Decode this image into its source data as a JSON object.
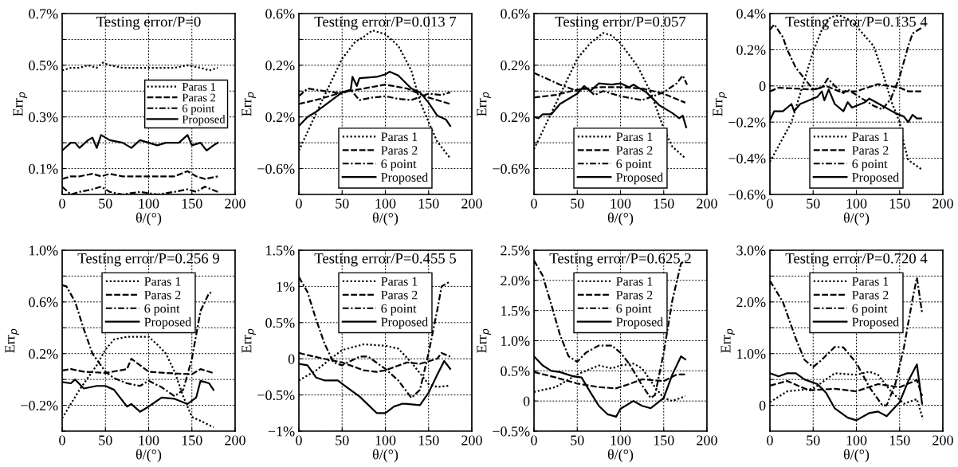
{
  "chart_data": [
    {
      "type": "line",
      "title": "Testing error/P=0",
      "xlabel": "θ/(°)",
      "ylabel": "Err$_{p}$",
      "grid": true,
      "legend": "right",
      "xlim": [
        0,
        200
      ],
      "xticks": [
        0,
        50,
        100,
        150,
        200
      ],
      "ylim": [
        0,
        0.7
      ],
      "yticks": [
        {
          "value": 0,
          "label": null
        },
        {
          "value": 0.1,
          "label": "0.1%"
        },
        {
          "value": 0.2,
          "label": null
        },
        {
          "value": 0.3,
          "label": "0.3%"
        },
        {
          "value": 0.4,
          "label": null
        },
        {
          "value": 0.5,
          "label": "0.5%"
        },
        {
          "value": 0.6,
          "label": null
        },
        {
          "value": 0.7,
          "label": "0.7%"
        }
      ],
      "series": [
        {
          "name": "Paras 1",
          "color": "#000000",
          "line_style": "dotted",
          "x": [
            0,
            10,
            20,
            30,
            40,
            47,
            55,
            70,
            90,
            110,
            130,
            145,
            160,
            170,
            180
          ],
          "values": [
            0.48,
            0.49,
            0.49,
            0.5,
            0.49,
            0.51,
            0.5,
            0.49,
            0.49,
            0.49,
            0.49,
            0.5,
            0.49,
            0.48,
            0.49
          ]
        },
        {
          "name": "Paras 2",
          "color": "#000000",
          "line_style": "dashed",
          "x": [
            0,
            10,
            20,
            35,
            45,
            55,
            70,
            90,
            110,
            130,
            145,
            155,
            165,
            180
          ],
          "values": [
            0.06,
            0.07,
            0.07,
            0.08,
            0.07,
            0.08,
            0.07,
            0.07,
            0.07,
            0.07,
            0.09,
            0.07,
            0.06,
            0.07
          ]
        },
        {
          "name": "6 point",
          "color": "#000000",
          "line_style": "dashdot",
          "x": [
            0,
            10,
            20,
            35,
            45,
            55,
            70,
            90,
            110,
            130,
            145,
            155,
            165,
            180
          ],
          "values": [
            0.03,
            0.0,
            0.01,
            0.02,
            0.03,
            0.01,
            0.0,
            0.01,
            0.0,
            0.01,
            0.02,
            0.01,
            0.03,
            0.01
          ]
        },
        {
          "name": "Proposed",
          "color": "#000000",
          "line_style": "solid",
          "x": [
            0,
            10,
            15,
            20,
            30,
            35,
            40,
            45,
            55,
            70,
            80,
            90,
            100,
            110,
            120,
            135,
            145,
            150,
            160,
            167,
            175,
            180
          ],
          "values": [
            0.17,
            0.2,
            0.2,
            0.18,
            0.21,
            0.22,
            0.18,
            0.23,
            0.21,
            0.2,
            0.18,
            0.21,
            0.2,
            0.19,
            0.2,
            0.2,
            0.23,
            0.19,
            0.2,
            0.17,
            0.19,
            0.2
          ]
        }
      ]
    },
    {
      "type": "line",
      "title": "Testing error/P=0.013 7",
      "xlabel": "θ/(°)",
      "ylabel": "Err$_{p}$",
      "grid": true,
      "legend": "bottom",
      "xlim": [
        0,
        200
      ],
      "xticks": [
        0,
        50,
        100,
        150,
        200
      ],
      "ylim": [
        -0.8,
        0.6
      ],
      "yticks": [
        {
          "value": -0.8,
          "label": null
        },
        {
          "value": -0.6,
          "label": "−0.6%"
        },
        {
          "value": -0.4,
          "label": null
        },
        {
          "value": -0.2,
          "label": "0.2%"
        },
        {
          "value": 0,
          "label": null
        },
        {
          "value": 0.2,
          "label": "0.2%"
        },
        {
          "value": 0.4,
          "label": null
        },
        {
          "value": 0.6,
          "label": "0.6%"
        }
      ],
      "series": [
        {
          "name": "Paras 1",
          "color": "#000000",
          "line_style": "dotted",
          "x": [
            0,
            25,
            50,
            65,
            75,
            85,
            100,
            115,
            130,
            140,
            150,
            160,
            175
          ],
          "values": [
            -0.46,
            -0.1,
            0.25,
            0.38,
            0.42,
            0.47,
            0.44,
            0.35,
            0.16,
            -0.08,
            -0.24,
            -0.39,
            -0.52
          ]
        },
        {
          "name": "Paras 2",
          "color": "#000000",
          "line_style": "dashed",
          "x": [
            0,
            25,
            50,
            75,
            100,
            125,
            150,
            175
          ],
          "values": [
            -0.1,
            -0.06,
            -0.01,
            0.02,
            0.05,
            0.02,
            -0.05,
            -0.1
          ]
        },
        {
          "name": "6 point",
          "color": "#000000",
          "line_style": "dashdot",
          "x": [
            0,
            10,
            30,
            50,
            60,
            70,
            85,
            100,
            115,
            130,
            150,
            165,
            175
          ],
          "values": [
            -0.04,
            0.02,
            0.0,
            -0.02,
            0.01,
            -0.07,
            -0.05,
            -0.04,
            -0.06,
            -0.07,
            -0.02,
            -0.03,
            -0.01
          ]
        },
        {
          "name": "Proposed",
          "color": "#000000",
          "line_style": "solid",
          "x": [
            0,
            10,
            20,
            30,
            50,
            60,
            62,
            67,
            70,
            90,
            100,
            105,
            115,
            130,
            140,
            150,
            160,
            170,
            175
          ],
          "values": [
            -0.27,
            -0.2,
            -0.16,
            -0.11,
            -0.01,
            0.01,
            0.11,
            0.04,
            0.1,
            0.11,
            0.13,
            0.15,
            0.12,
            0.02,
            -0.01,
            -0.09,
            -0.19,
            -0.22,
            -0.27
          ]
        }
      ]
    },
    {
      "type": "line",
      "title": "Testing error/P=0.057",
      "xlabel": "θ/(°)",
      "ylabel": "Err$_{p}$",
      "grid": true,
      "legend": "bottom",
      "xlim": [
        0,
        200
      ],
      "xticks": [
        0,
        50,
        100,
        150,
        200
      ],
      "ylim": [
        -0.8,
        0.6
      ],
      "yticks": [
        {
          "value": -0.8,
          "label": null
        },
        {
          "value": -0.6,
          "label": "−0.6%"
        },
        {
          "value": -0.4,
          "label": null
        },
        {
          "value": -0.2,
          "label": "0.2%"
        },
        {
          "value": 0,
          "label": null
        },
        {
          "value": 0.2,
          "label": "0.2%"
        },
        {
          "value": 0.4,
          "label": null
        },
        {
          "value": 0.6,
          "label": "0.6%"
        }
      ],
      "series": [
        {
          "name": "Paras 1",
          "color": "#000000",
          "line_style": "dotted",
          "x": [
            0,
            25,
            50,
            65,
            80,
            90,
            100,
            120,
            135,
            150,
            160,
            175
          ],
          "values": [
            -0.45,
            -0.1,
            0.25,
            0.37,
            0.45,
            0.43,
            0.37,
            0.19,
            -0.01,
            -0.29,
            -0.43,
            -0.52
          ]
        },
        {
          "name": "Paras 2",
          "color": "#000000",
          "line_style": "dashed",
          "x": [
            0,
            25,
            50,
            75,
            100,
            125,
            150,
            175
          ],
          "values": [
            -0.05,
            -0.03,
            0.01,
            0.03,
            0.03,
            0.02,
            -0.02,
            -0.09
          ]
        },
        {
          "name": "6 point",
          "color": "#000000",
          "line_style": "dashdot",
          "x": [
            0,
            10,
            30,
            50,
            60,
            70,
            80,
            100,
            125,
            150,
            165,
            172,
            177
          ],
          "values": [
            0.14,
            0.11,
            0.05,
            0.0,
            0.03,
            -0.03,
            0.0,
            -0.04,
            -0.07,
            -0.01,
            0.06,
            0.12,
            0.05
          ]
        },
        {
          "name": "Proposed",
          "color": "#000000",
          "line_style": "solid",
          "x": [
            0,
            5,
            10,
            20,
            30,
            50,
            58,
            65,
            75,
            90,
            100,
            110,
            115,
            130,
            145,
            160,
            168,
            172,
            176
          ],
          "values": [
            -0.2,
            -0.21,
            -0.18,
            -0.18,
            -0.1,
            -0.02,
            0.04,
            0.0,
            0.06,
            0.05,
            0.06,
            0.03,
            0.05,
            -0.01,
            -0.11,
            -0.17,
            -0.21,
            -0.19,
            -0.28
          ]
        }
      ]
    },
    {
      "type": "line",
      "title": "Testing error/P=0.135 4",
      "xlabel": "θ/(°)",
      "ylabel": "Err$_{p}$",
      "grid": true,
      "legend": "bottom",
      "xlim": [
        0,
        200
      ],
      "xticks": [
        0,
        50,
        100,
        150,
        200
      ],
      "ylim": [
        -0.6,
        0.4
      ],
      "yticks": [
        {
          "value": -0.6,
          "label": "−0.6%"
        },
        {
          "value": -0.4,
          "label": "−0.4%"
        },
        {
          "value": -0.2,
          "label": "−0.2%"
        },
        {
          "value": 0,
          "label": "0"
        },
        {
          "value": 0.2,
          "label": "0.2%"
        },
        {
          "value": 0.4,
          "label": "0.4%"
        }
      ],
      "series": [
        {
          "name": "Paras 1",
          "color": "#000000",
          "line_style": "dotted",
          "x": [
            0,
            25,
            50,
            60,
            70,
            80,
            90,
            100,
            120,
            130,
            140,
            150,
            155,
            160,
            175
          ],
          "values": [
            -0.42,
            -0.2,
            0.19,
            0.31,
            0.38,
            0.39,
            0.37,
            0.33,
            0.22,
            0.08,
            -0.08,
            -0.2,
            -0.32,
            -0.41,
            -0.46
          ]
        },
        {
          "name": "Paras 2",
          "color": "#000000",
          "line_style": "dashed",
          "x": [
            0,
            10,
            50,
            65,
            80,
            100,
            125,
            150,
            160,
            175
          ],
          "values": [
            -0.03,
            -0.01,
            -0.02,
            0.0,
            -0.03,
            -0.03,
            0.01,
            -0.01,
            -0.03,
            -0.03
          ]
        },
        {
          "name": "6 point",
          "color": "#000000",
          "line_style": "dashdot",
          "x": [
            0,
            5,
            15,
            20,
            30,
            35,
            50,
            60,
            67,
            75,
            85,
            90,
            100,
            120,
            130,
            140,
            150,
            160,
            165,
            175
          ],
          "values": [
            0.31,
            0.34,
            0.27,
            0.2,
            0.1,
            0.07,
            -0.02,
            -0.01,
            0.04,
            0.0,
            -0.04,
            -0.02,
            -0.05,
            -0.11,
            -0.13,
            -0.07,
            0.05,
            0.22,
            0.29,
            0.32
          ]
        },
        {
          "name": "Proposed",
          "color": "#000000",
          "line_style": "solid",
          "x": [
            0,
            5,
            15,
            25,
            28,
            35,
            45,
            55,
            60,
            63,
            68,
            75,
            85,
            90,
            95,
            110,
            115,
            130,
            145,
            155,
            160,
            165,
            170,
            175
          ],
          "values": [
            -0.19,
            -0.14,
            -0.14,
            -0.1,
            -0.14,
            -0.1,
            -0.08,
            -0.06,
            -0.03,
            -0.08,
            -0.02,
            -0.1,
            -0.14,
            -0.09,
            -0.12,
            -0.09,
            -0.07,
            -0.11,
            -0.15,
            -0.17,
            -0.2,
            -0.16,
            -0.18,
            -0.18
          ]
        }
      ]
    },
    {
      "type": "line",
      "title": "Testing error/P=0.256 9",
      "xlabel": "θ/(°)",
      "ylabel": "Err$_{p}$",
      "grid": true,
      "legend": "top",
      "xlim": [
        0,
        200
      ],
      "xticks": [
        0,
        50,
        100,
        150,
        200
      ],
      "ylim": [
        -0.4,
        1.0
      ],
      "yticks": [
        {
          "value": -0.4,
          "label": null
        },
        {
          "value": -0.2,
          "label": "−0.2%"
        },
        {
          "value": 0,
          "label": null
        },
        {
          "value": 0.2,
          "label": "0.2%"
        },
        {
          "value": 0.4,
          "label": null
        },
        {
          "value": 0.6,
          "label": "0.6%"
        },
        {
          "value": 0.8,
          "label": null
        },
        {
          "value": 1.0,
          "label": "1.0%"
        }
      ],
      "series": [
        {
          "name": "Paras 1",
          "color": "#000000",
          "line_style": "dotted",
          "x": [
            0,
            20,
            40,
            50,
            60,
            75,
            100,
            110,
            120,
            130,
            140,
            150,
            160,
            175
          ],
          "values": [
            -0.3,
            -0.08,
            0.11,
            0.23,
            0.31,
            0.33,
            0.33,
            0.27,
            0.2,
            0.06,
            -0.13,
            -0.29,
            -0.32,
            -0.37
          ]
        },
        {
          "name": "Paras 2",
          "color": "#000000",
          "line_style": "dashed",
          "x": [
            0,
            10,
            25,
            50,
            75,
            80,
            100,
            120,
            150,
            160,
            175
          ],
          "values": [
            0.07,
            0.08,
            0.06,
            0.05,
            0.08,
            0.16,
            0.06,
            0.05,
            0.04,
            0.08,
            0.05
          ]
        },
        {
          "name": "6 point",
          "color": "#000000",
          "line_style": "dashdot",
          "x": [
            0,
            5,
            15,
            25,
            35,
            50,
            60,
            75,
            90,
            100,
            115,
            130,
            140,
            150,
            160,
            170,
            175
          ],
          "values": [
            0.73,
            0.72,
            0.6,
            0.39,
            0.2,
            0.06,
            0.01,
            -0.03,
            -0.05,
            -0.01,
            -0.06,
            -0.13,
            -0.08,
            0.16,
            0.53,
            0.67,
            0.67
          ]
        },
        {
          "name": "Proposed",
          "color": "#000000",
          "line_style": "solid",
          "x": [
            0,
            10,
            15,
            25,
            40,
            50,
            60,
            75,
            80,
            90,
            100,
            115,
            130,
            145,
            155,
            160,
            170,
            175
          ],
          "values": [
            -0.02,
            -0.03,
            0.0,
            -0.07,
            -0.05,
            -0.05,
            -0.08,
            -0.21,
            -0.19,
            -0.25,
            -0.21,
            -0.14,
            -0.15,
            -0.19,
            -0.14,
            -0.01,
            -0.03,
            -0.08
          ]
        }
      ]
    },
    {
      "type": "line",
      "title": "Testing error/P=0.455 5",
      "xlabel": "θ/(°)",
      "ylabel": "Err$_{p}$",
      "grid": true,
      "legend": "top",
      "xlim": [
        0,
        200
      ],
      "xticks": [
        0,
        50,
        100,
        150,
        200
      ],
      "ylim": [
        -1.0,
        1.5
      ],
      "yticks": [
        {
          "value": -1.0,
          "label": "−1%"
        },
        {
          "value": -0.5,
          "label": "−0.5%"
        },
        {
          "value": 0,
          "label": "0"
        },
        {
          "value": 0.5,
          "label": "0.5%"
        },
        {
          "value": 1.0,
          "label": "1%"
        },
        {
          "value": 1.5,
          "label": "1.5%"
        }
      ],
      "series": [
        {
          "name": "Paras 1",
          "color": "#000000",
          "line_style": "dotted",
          "x": [
            0,
            20,
            40,
            50,
            75,
            100,
            115,
            130,
            150,
            160,
            175
          ],
          "values": [
            -0.3,
            -0.16,
            0.03,
            0.12,
            0.2,
            0.18,
            0.14,
            -0.05,
            -0.35,
            -0.39,
            -0.37
          ]
        },
        {
          "name": "Paras 2",
          "color": "#000000",
          "line_style": "dashed",
          "x": [
            0,
            25,
            50,
            75,
            90,
            100,
            125,
            140,
            160,
            165,
            175
          ],
          "values": [
            0.08,
            0.01,
            -0.05,
            -0.16,
            -0.18,
            -0.16,
            -0.05,
            -0.07,
            0.0,
            0.08,
            0.03
          ]
        },
        {
          "name": "6 point",
          "color": "#000000",
          "line_style": "dashdot",
          "x": [
            0,
            10,
            20,
            30,
            40,
            50,
            70,
            80,
            100,
            115,
            130,
            140,
            150,
            160,
            165,
            175
          ],
          "values": [
            1.13,
            0.92,
            0.54,
            0.2,
            -0.05,
            -0.09,
            0.03,
            0.03,
            -0.14,
            -0.3,
            -0.54,
            -0.43,
            0.08,
            0.67,
            1.0,
            1.07
          ]
        },
        {
          "name": "Proposed",
          "color": "#000000",
          "line_style": "solid",
          "x": [
            0,
            10,
            20,
            30,
            45,
            55,
            70,
            90,
            100,
            110,
            120,
            140,
            150,
            160,
            168,
            175
          ],
          "values": [
            -0.07,
            -0.09,
            -0.26,
            -0.3,
            -0.3,
            -0.39,
            -0.52,
            -0.75,
            -0.75,
            -0.66,
            -0.62,
            -0.64,
            -0.47,
            -0.22,
            -0.03,
            -0.14
          ]
        }
      ]
    },
    {
      "type": "line",
      "title": "Testing error/P=0.625 2",
      "xlabel": "θ/(°)",
      "ylabel": "Err$_{p}$",
      "grid": true,
      "legend": "top",
      "xlim": [
        0,
        200
      ],
      "xticks": [
        0,
        50,
        100,
        150,
        200
      ],
      "ylim": [
        -0.5,
        2.5
      ],
      "yticks": [
        {
          "value": -0.5,
          "label": "−0.5%"
        },
        {
          "value": 0,
          "label": "0"
        },
        {
          "value": 0.5,
          "label": "0.5%"
        },
        {
          "value": 1.0,
          "label": "1.0%"
        },
        {
          "value": 1.5,
          "label": "1.5%"
        },
        {
          "value": 2.0,
          "label": "2.0%"
        },
        {
          "value": 2.5,
          "label": "2.5%"
        }
      ],
      "series": [
        {
          "name": "Paras 1",
          "color": "#000000",
          "line_style": "dotted",
          "x": [
            0,
            25,
            50,
            75,
            90,
            100,
            115,
            125,
            140,
            150,
            160,
            175
          ],
          "values": [
            0.15,
            0.23,
            0.44,
            0.59,
            0.54,
            0.59,
            0.62,
            0.54,
            0.23,
            0.05,
            0.0,
            0.08
          ]
        },
        {
          "name": "Paras 2",
          "color": "#000000",
          "line_style": "dashed",
          "x": [
            0,
            25,
            50,
            75,
            95,
            110,
            125,
            150,
            165,
            175
          ],
          "values": [
            0.48,
            0.39,
            0.29,
            0.23,
            0.21,
            0.28,
            0.36,
            0.33,
            0.44,
            0.44
          ]
        },
        {
          "name": "6 point",
          "color": "#000000",
          "line_style": "dashdot",
          "x": [
            0,
            10,
            20,
            30,
            40,
            50,
            60,
            75,
            90,
            100,
            110,
            125,
            135,
            140,
            150,
            160,
            170,
            175
          ],
          "values": [
            2.33,
            2.08,
            1.6,
            1.1,
            0.74,
            0.65,
            0.8,
            0.92,
            0.92,
            0.8,
            0.62,
            0.26,
            0.05,
            0.1,
            0.8,
            1.67,
            2.28,
            2.33
          ]
        },
        {
          "name": "Proposed",
          "color": "#000000",
          "line_style": "solid",
          "x": [
            0,
            10,
            20,
            30,
            45,
            55,
            65,
            75,
            85,
            95,
            100,
            115,
            125,
            135,
            150,
            160,
            170,
            175
          ],
          "values": [
            0.74,
            0.59,
            0.5,
            0.48,
            0.41,
            0.39,
            0.15,
            -0.08,
            -0.22,
            -0.26,
            -0.13,
            0.0,
            -0.08,
            -0.12,
            0.05,
            0.44,
            0.74,
            0.69
          ]
        }
      ]
    },
    {
      "type": "line",
      "title": "Testing error/P=0.720 4",
      "xlabel": "θ/(°)",
      "ylabel": "Err$_{p}$",
      "grid": true,
      "legend": "top",
      "xlim": [
        0,
        200
      ],
      "xticks": [
        0,
        50,
        100,
        150,
        200
      ],
      "ylim": [
        -0.5,
        3.0
      ],
      "yticks": [
        {
          "value": 0,
          "label": "0"
        },
        {
          "value": 0.5,
          "label": null
        },
        {
          "value": 1.0,
          "label": "1.0%"
        },
        {
          "value": 1.5,
          "label": null
        },
        {
          "value": 2.0,
          "label": "2.0%"
        },
        {
          "value": 2.5,
          "label": null
        },
        {
          "value": 3.0,
          "label": "3.0%"
        }
      ],
      "series": [
        {
          "name": "Paras 1",
          "color": "#000000",
          "line_style": "dotted",
          "x": [
            0,
            20,
            50,
            75,
            100,
            115,
            125,
            140,
            155,
            170,
            177
          ],
          "values": [
            0.06,
            0.27,
            0.32,
            0.62,
            0.59,
            0.65,
            0.59,
            0.27,
            0.03,
            0.12,
            -0.27
          ]
        },
        {
          "name": "Paras 2",
          "color": "#000000",
          "line_style": "dashed",
          "x": [
            0,
            20,
            45,
            75,
            100,
            125,
            150,
            170,
            176
          ],
          "values": [
            0.38,
            0.47,
            0.29,
            0.32,
            0.27,
            0.41,
            0.35,
            0.49,
            0.18
          ]
        },
        {
          "name": "6 point",
          "color": "#000000",
          "line_style": "dashdot",
          "x": [
            0,
            15,
            30,
            40,
            50,
            60,
            75,
            85,
            100,
            115,
            130,
            135,
            145,
            155,
            165,
            170,
            176
          ],
          "values": [
            2.41,
            2.0,
            1.29,
            0.88,
            0.74,
            0.88,
            1.13,
            1.12,
            0.82,
            0.35,
            0.0,
            0.0,
            0.41,
            1.12,
            2.06,
            2.47,
            1.79
          ]
        },
        {
          "name": "Proposed",
          "color": "#000000",
          "line_style": "solid",
          "x": [
            0,
            10,
            20,
            30,
            40,
            55,
            65,
            75,
            90,
            100,
            115,
            125,
            135,
            150,
            160,
            170,
            176
          ],
          "values": [
            0.62,
            0.56,
            0.62,
            0.62,
            0.5,
            0.41,
            0.24,
            -0.06,
            -0.24,
            -0.29,
            -0.15,
            -0.12,
            -0.21,
            0.06,
            0.47,
            0.79,
            0.03
          ]
        }
      ]
    }
  ]
}
